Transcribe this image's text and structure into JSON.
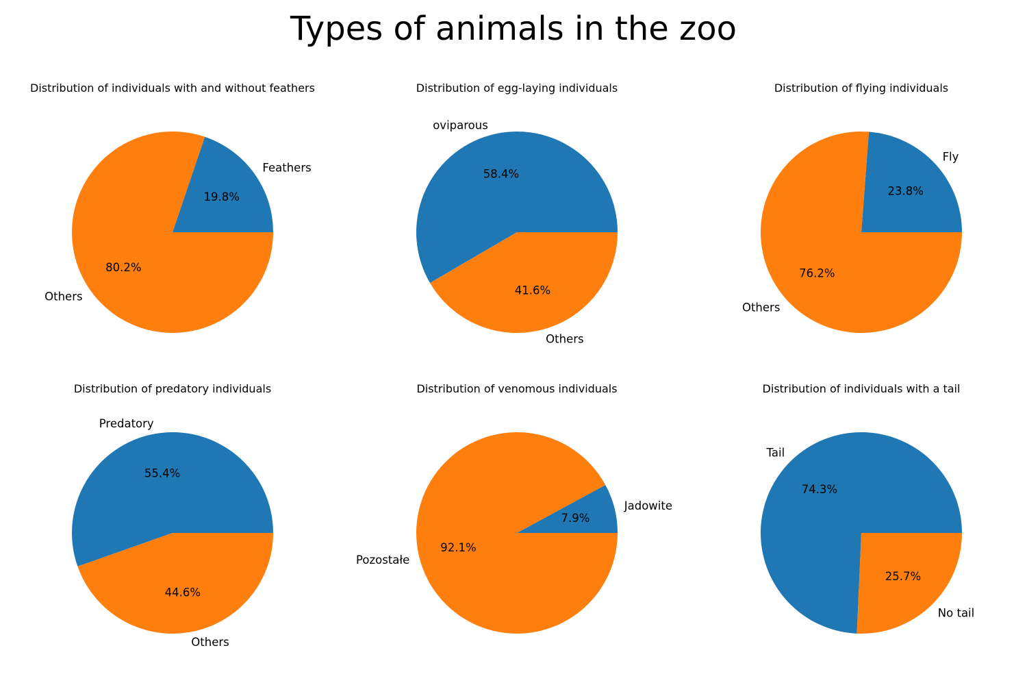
{
  "figure": {
    "title": "Types of animals in the zoo"
  },
  "colors": {
    "series_blue": "#1f77b4",
    "series_orange": "#ff7f0e"
  },
  "chart_data": [
    {
      "type": "pie",
      "title": "Distribution of individuals with and without feathers",
      "labels": [
        "Feathers",
        "Others"
      ],
      "values": [
        19.8,
        80.2
      ],
      "percent_labels": [
        "19.8%",
        "80.2%"
      ],
      "colors": [
        "#1f77b4",
        "#ff7f0e"
      ],
      "start_angle": 0,
      "direction": "counterclockwise"
    },
    {
      "type": "pie",
      "title": "Distribution of egg-laying individuals",
      "labels": [
        "oviparous",
        "Others"
      ],
      "values": [
        58.4,
        41.6
      ],
      "percent_labels": [
        "58.4%",
        "41.6%"
      ],
      "colors": [
        "#1f77b4",
        "#ff7f0e"
      ],
      "start_angle": 0,
      "direction": "counterclockwise"
    },
    {
      "type": "pie",
      "title": "Distribution of flying individuals",
      "labels": [
        "Fly",
        "Others"
      ],
      "values": [
        23.8,
        76.2
      ],
      "percent_labels": [
        "23.8%",
        "76.2%"
      ],
      "colors": [
        "#1f77b4",
        "#ff7f0e"
      ],
      "start_angle": 0,
      "direction": "counterclockwise"
    },
    {
      "type": "pie",
      "title": "Distribution of predatory individuals",
      "labels": [
        "Predatory",
        "Others"
      ],
      "values": [
        55.4,
        44.6
      ],
      "percent_labels": [
        "55.4%",
        "44.6%"
      ],
      "colors": [
        "#1f77b4",
        "#ff7f0e"
      ],
      "start_angle": 0,
      "direction": "counterclockwise"
    },
    {
      "type": "pie",
      "title": "Distribution of venomous individuals",
      "labels": [
        "Jadowite",
        "Pozostałe"
      ],
      "values": [
        7.9,
        92.1
      ],
      "percent_labels": [
        "7.9%",
        "92.1%"
      ],
      "colors": [
        "#1f77b4",
        "#ff7f0e"
      ],
      "start_angle": 0,
      "direction": "counterclockwise"
    },
    {
      "type": "pie",
      "title": "Distribution of individuals with a tail",
      "labels": [
        "Tail",
        "No tail"
      ],
      "values": [
        74.3,
        25.7
      ],
      "percent_labels": [
        "74.3%",
        "25.7%"
      ],
      "colors": [
        "#1f77b4",
        "#ff7f0e"
      ],
      "start_angle": 0,
      "direction": "counterclockwise"
    }
  ]
}
